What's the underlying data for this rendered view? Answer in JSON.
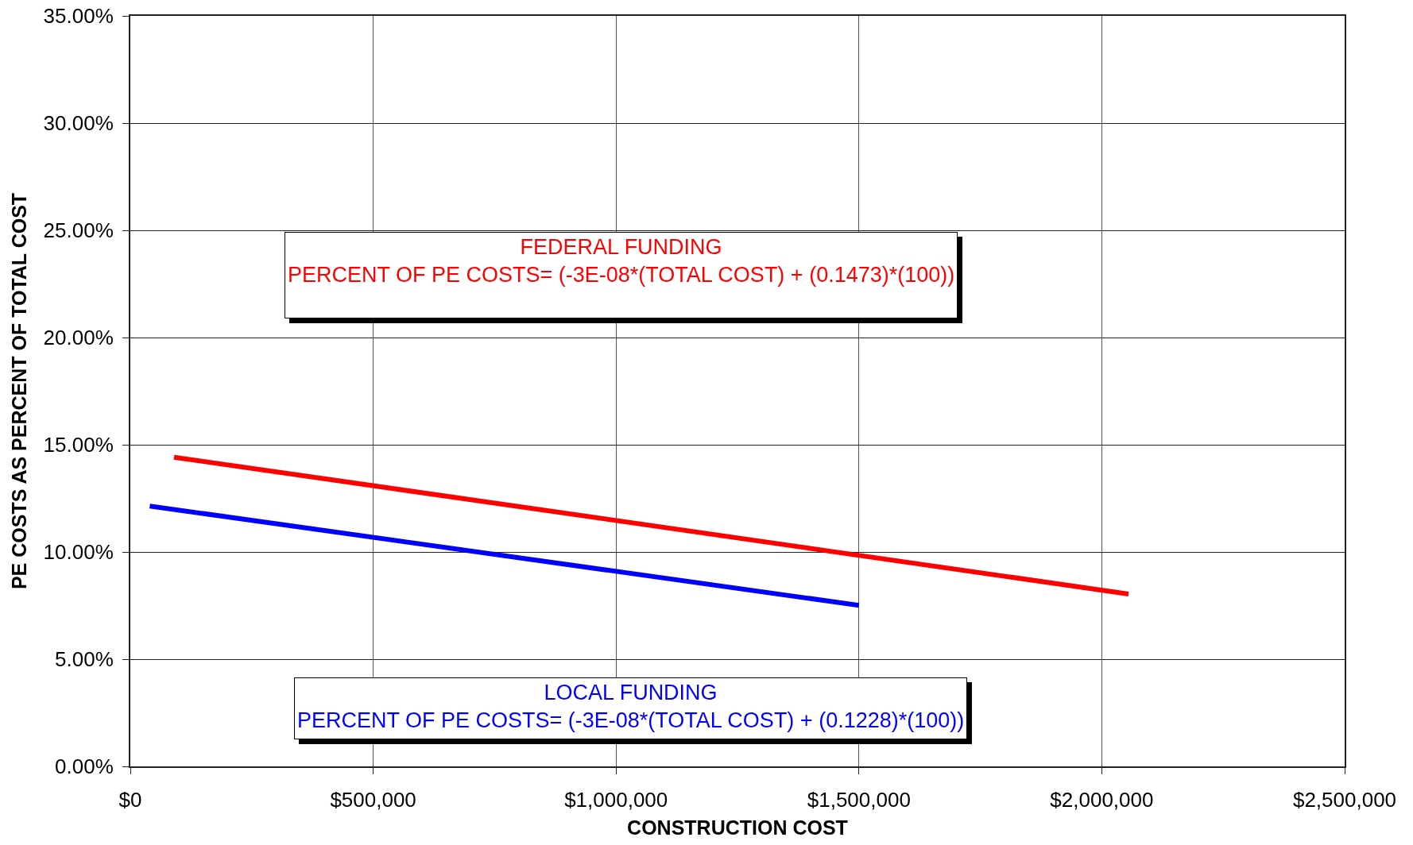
{
  "chart_data": {
    "type": "line",
    "xlabel": "CONSTRUCTION COST",
    "ylabel": "PE COSTS AS PERCENT OF TOTAL COST",
    "xlim": [
      0,
      2500000
    ],
    "xticks": [
      {
        "value": 0,
        "label": "$0"
      },
      {
        "value": 500000,
        "label": "$500,000"
      },
      {
        "value": 1000000,
        "label": "$1,000,000"
      },
      {
        "value": 1500000,
        "label": "$1,500,000"
      },
      {
        "value": 2000000,
        "label": "$2,000,000"
      },
      {
        "value": 2500000,
        "label": "$2,500,000"
      }
    ],
    "ylim": [
      0,
      35
    ],
    "yticks": [
      {
        "value": 0,
        "label": "0.00%"
      },
      {
        "value": 5,
        "label": "5.00%"
      },
      {
        "value": 10,
        "label": "10.00%"
      },
      {
        "value": 15,
        "label": "15.00%"
      },
      {
        "value": 20,
        "label": "20.00%"
      },
      {
        "value": 25,
        "label": "25.00%"
      },
      {
        "value": 30,
        "label": "30.00%"
      },
      {
        "value": 35,
        "label": "35.00%"
      }
    ],
    "series": [
      {
        "color": "#ff0000",
        "x": [
          90000,
          2055000
        ],
        "values": [
          14.42,
          8.04
        ]
      },
      {
        "color": "#0000ff",
        "x": [
          40000,
          1500000
        ],
        "values": [
          12.14,
          7.51
        ]
      }
    ],
    "annotations": [
      "FEDERAL FUNDING\nPERCENT OF PE COSTS= (-3E-08*(TOTAL COST) + (0.1473)*(100))",
      "LOCAL FUNDING\nPERCENT OF PE COSTS= (-3E-08*(TOTAL COST) + (0.1228)*(100))"
    ],
    "grid": true,
    "marker": "none",
    "line_style": "solid"
  }
}
